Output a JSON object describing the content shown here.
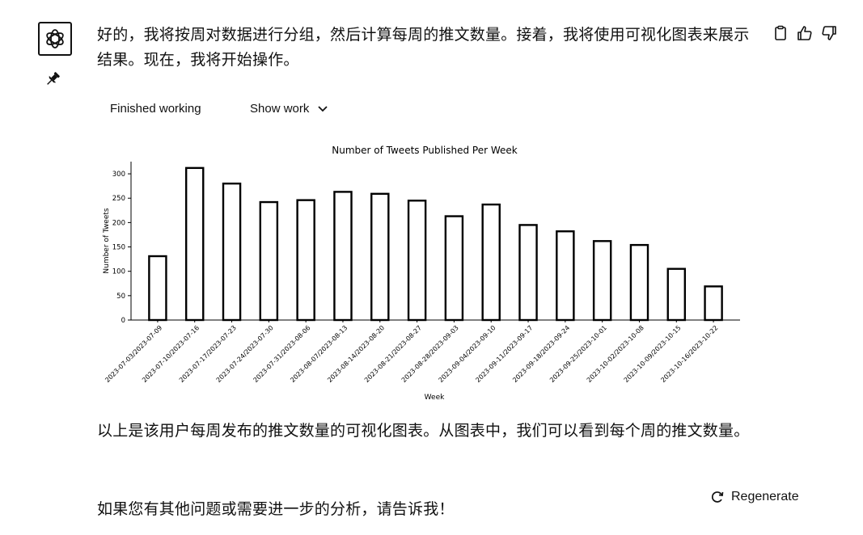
{
  "message": {
    "intro": "好的，我将按周对数据进行分组，然后计算每周的推文数量。接着，我将使用可视化图表来展示结果。现在，我将开始操作。",
    "status": "Finished working",
    "show_work": "Show work",
    "summary": "以上是该用户每周发布的推文数量的可视化图表。从图表中，我们可以看到每个周的推文数量。",
    "closing": "如果您有其他问题或需要进一步的分析，请告诉我！"
  },
  "regenerate_label": "Regenerate",
  "icons": {
    "avatar": "openai-logo-icon",
    "pin": "pin-icon",
    "copy": "clipboard-icon",
    "like": "thumbs-up-icon",
    "dislike": "thumbs-down-icon",
    "show_work": "chevron-down-icon",
    "regenerate": "refresh-icon"
  },
  "chart_data": {
    "type": "bar",
    "title": "Number of Tweets Published Per Week",
    "xlabel": "Week",
    "ylabel": "Number of Tweets",
    "ylim": [
      0,
      325
    ],
    "yticks": [
      0,
      50,
      100,
      150,
      200,
      250,
      300
    ],
    "grid": false,
    "bar_color": "#ffffff",
    "edge_color": "#000000",
    "categories": [
      "2023-07-03/2023-07-09",
      "2023-07-10/2023-07-16",
      "2023-07-17/2023-07-23",
      "2023-07-24/2023-07-30",
      "2023-07-31/2023-08-06",
      "2023-08-07/2023-08-13",
      "2023-08-14/2023-08-20",
      "2023-08-21/2023-08-27",
      "2023-08-28/2023-09-03",
      "2023-09-04/2023-09-10",
      "2023-09-11/2023-09-17",
      "2023-09-18/2023-09-24",
      "2023-09-25/2023-10-01",
      "2023-10-02/2023-10-08",
      "2023-10-09/2023-10-15",
      "2023-10-16/2023-10-22"
    ],
    "values": [
      131,
      312,
      280,
      242,
      246,
      263,
      259,
      245,
      213,
      237,
      195,
      182,
      162,
      154,
      105,
      69
    ]
  }
}
